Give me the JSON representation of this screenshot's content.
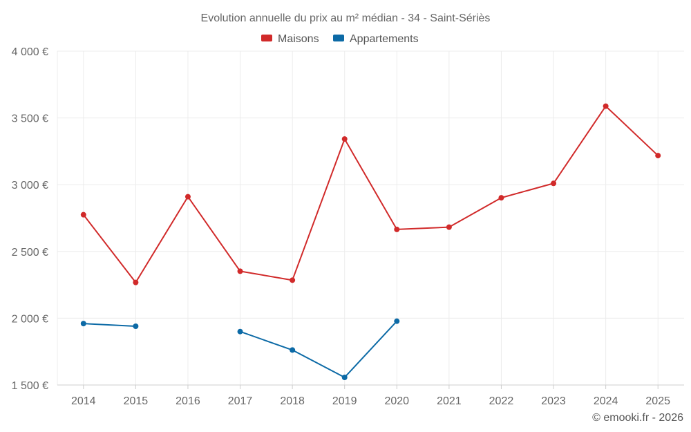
{
  "chart_data": {
    "type": "line",
    "title": "Evolution annuelle du prix au m² médian - 34 - Saint-Sériès",
    "categories": [
      "2014",
      "2015",
      "2016",
      "2017",
      "2018",
      "2019",
      "2020",
      "2021",
      "2022",
      "2023",
      "2024",
      "2025"
    ],
    "ylim": [
      1500,
      4000
    ],
    "yticks": [
      1500,
      2000,
      2500,
      3000,
      3500,
      4000
    ],
    "ytick_labels": [
      "1 500 €",
      "2 000 €",
      "2 500 €",
      "3 000 €",
      "3 500 €",
      "4 000 €"
    ],
    "grid": true,
    "legend_position": "top-center",
    "series": [
      {
        "name": "Maisons",
        "color": "#d12a2a",
        "values": [
          2775,
          2268,
          2910,
          2352,
          2285,
          3342,
          2665,
          2682,
          2902,
          3010,
          3588,
          3218
        ]
      },
      {
        "name": "Appartements",
        "color": "#0c6aa6",
        "values": [
          1960,
          1940,
          null,
          1900,
          1762,
          1557,
          1978,
          null,
          null,
          null,
          null,
          null
        ]
      }
    ]
  },
  "credit": "© emooki.fr - 2026"
}
